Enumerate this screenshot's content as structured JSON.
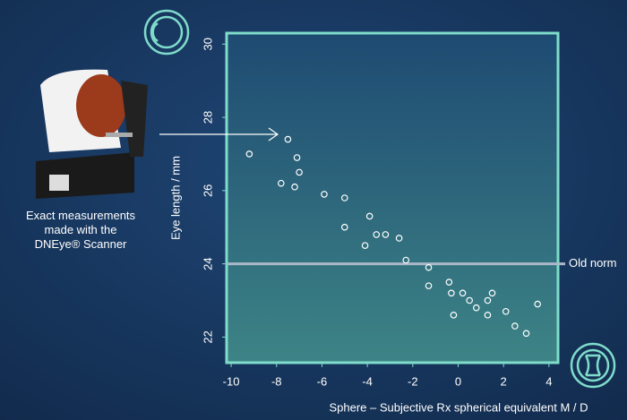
{
  "chart_data": {
    "type": "scatter",
    "x_label": "Sphere – Subjective Rx spherical equivalent M / D",
    "y_label": "Eye length / mm",
    "caption": [
      "Exact measurements",
      "made with the",
      "DNEye® Scanner"
    ],
    "xlim": [
      -10.2,
      4.4
    ],
    "xticks": [
      -10,
      -8,
      -6,
      -4,
      -2,
      0,
      2,
      4
    ],
    "ylim": [
      21.3,
      30.3
    ],
    "yticks": [
      22,
      24,
      26,
      28,
      30
    ],
    "reference_line": {
      "value": 24,
      "label": "Old norm",
      "color": "#aab8c8"
    },
    "series": [
      {
        "color": "#ffffff",
        "x": [
          -9.2,
          -7.5,
          -7.1,
          -7.0,
          -7.8,
          -7.2,
          -5.9,
          -5.0,
          -3.9,
          -5.0,
          -3.6,
          -3.2,
          -2.6,
          -4.1,
          -2.3,
          -1.3,
          -1.3,
          -0.4,
          -0.3,
          0.2,
          0.5,
          -0.2,
          0.8,
          1.3,
          1.5,
          1.3,
          2.1,
          2.5,
          3.0,
          3.5
        ],
        "values": [
          27.0,
          27.4,
          26.9,
          26.5,
          26.2,
          26.1,
          25.9,
          25.8,
          25.3,
          25.0,
          24.8,
          24.8,
          24.7,
          24.5,
          24.1,
          23.9,
          23.4,
          23.5,
          23.2,
          23.2,
          23.0,
          22.6,
          22.8,
          23.0,
          23.2,
          22.6,
          22.7,
          22.3,
          22.1,
          22.9
        ]
      }
    ]
  }
}
